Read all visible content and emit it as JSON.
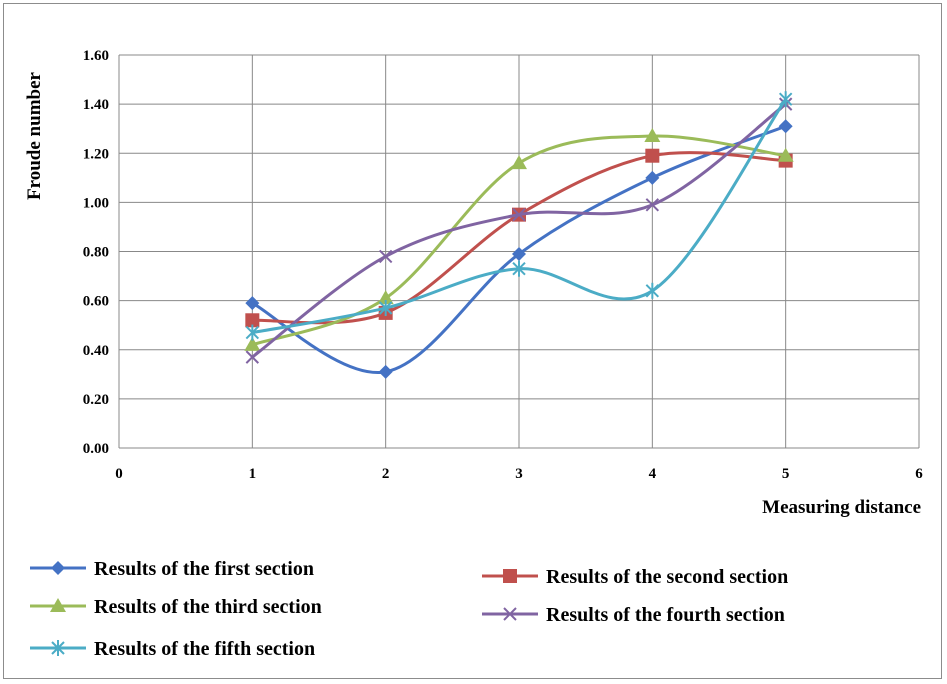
{
  "chart_data": {
    "type": "line",
    "smooth": true,
    "xlabel": "Measuring distance",
    "ylabel": "Froude number",
    "xlim": [
      0,
      6
    ],
    "ylim": [
      0,
      1.6
    ],
    "xticks": [
      "0",
      "1",
      "2",
      "3",
      "4",
      "5",
      "6"
    ],
    "yticks": [
      "0.00",
      "0.20",
      "0.40",
      "0.60",
      "0.80",
      "1.00",
      "1.20",
      "1.40",
      "1.60"
    ],
    "grid": true,
    "legend_position": "bottom",
    "series": [
      {
        "name": "Results of the first section",
        "color": "#4472C4",
        "marker": "diamond",
        "x": [
          1,
          2,
          3,
          4,
          5
        ],
        "y": [
          0.59,
          0.31,
          0.79,
          1.1,
          1.31
        ]
      },
      {
        "name": "Results of the second section",
        "color": "#C0504D",
        "marker": "square",
        "x": [
          1,
          2,
          3,
          4,
          5
        ],
        "y": [
          0.52,
          0.55,
          0.95,
          1.19,
          1.17
        ]
      },
      {
        "name": "Results of the third section",
        "color": "#9BBB59",
        "marker": "triangle",
        "x": [
          1,
          2,
          3,
          4,
          5
        ],
        "y": [
          0.42,
          0.61,
          1.16,
          1.27,
          1.19
        ]
      },
      {
        "name": "Results of the fourth section",
        "color": "#8064A2",
        "marker": "x",
        "x": [
          1,
          2,
          3,
          4,
          5
        ],
        "y": [
          0.37,
          0.78,
          0.95,
          0.99,
          1.4
        ]
      },
      {
        "name": "Results of the fifth section",
        "color": "#4BACC6",
        "marker": "star",
        "x": [
          1,
          2,
          3,
          4,
          5
        ],
        "y": [
          0.47,
          0.57,
          0.73,
          0.64,
          1.42
        ]
      }
    ]
  }
}
